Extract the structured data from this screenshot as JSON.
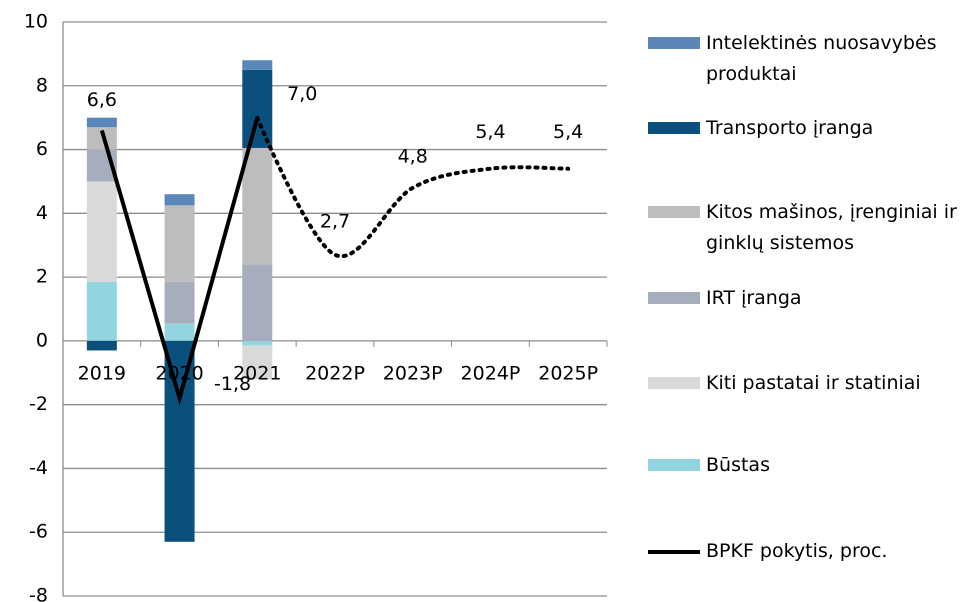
{
  "chart_data": {
    "type": "bar",
    "categories": [
      "2019",
      "2020",
      "2021",
      "2022P",
      "2023P",
      "2024P",
      "2025P"
    ],
    "ylim": [
      -8,
      10
    ],
    "yticks": [
      -8,
      -6,
      -4,
      -2,
      0,
      2,
      4,
      6,
      8,
      10
    ],
    "grid": true,
    "legend": "right",
    "series": [
      {
        "name": "Intelektinės nuosavybės produktai",
        "color": "#5b87b8",
        "values": [
          0.3,
          0.35,
          0.3,
          null,
          null,
          null,
          null
        ]
      },
      {
        "name": "Transporto įranga",
        "color": "#0b4f7c",
        "values": [
          -0.3,
          -6.3,
          2.45,
          null,
          null,
          null,
          null
        ]
      },
      {
        "name": "Kitos mašinos, įrenginiai ir ginklų sistemos",
        "color": "#bdbdbd",
        "values": [
          0.7,
          2.4,
          3.65,
          null,
          null,
          null,
          null
        ]
      },
      {
        "name": "IRT įranga",
        "color": "#a6adbd",
        "values": [
          1.0,
          1.3,
          2.4,
          null,
          null,
          null,
          null
        ]
      },
      {
        "name": "Kiti pastatai ir statiniai",
        "color": "#d9d9d9",
        "values": [
          3.15,
          0,
          -1.05,
          null,
          null,
          null,
          null
        ]
      },
      {
        "name": "Būstas",
        "color": "#92d5e0",
        "values": [
          1.85,
          0.55,
          -0.15,
          null,
          null,
          null,
          null
        ]
      },
      {
        "name": "BPKF pokytis, proc.",
        "type": "line",
        "color": "#000000",
        "dotted_from": 2,
        "values": [
          6.6,
          -1.8,
          7.0,
          2.7,
          4.8,
          5.4,
          5.4
        ],
        "value_labels": [
          "6,6",
          "-1,8",
          "7,0",
          "2,7",
          "4,8",
          "5,4",
          "5,4"
        ]
      }
    ]
  }
}
